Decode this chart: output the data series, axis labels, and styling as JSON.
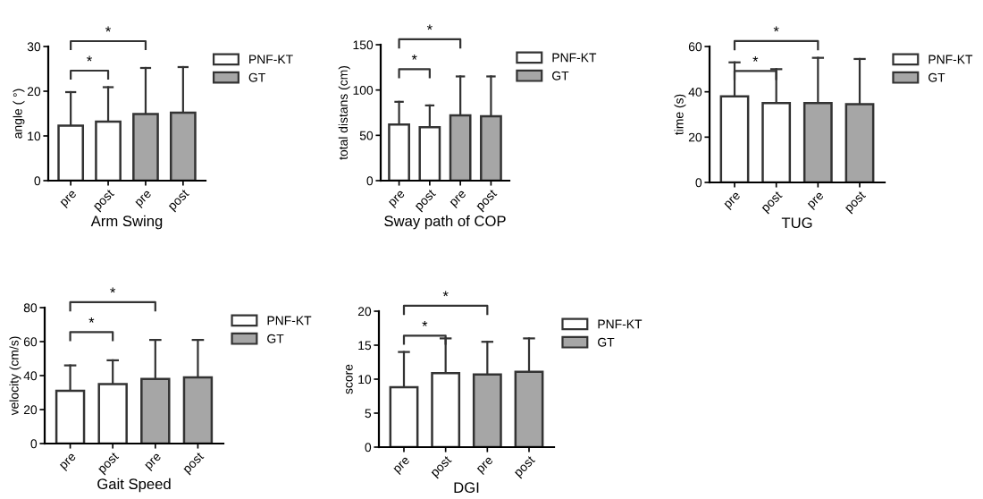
{
  "chart_data": [
    {
      "type": "bar",
      "xlabel": "Arm Swing",
      "ylabel": "angle ( °)",
      "categories": [
        "pre",
        "post",
        "pre",
        "post"
      ],
      "ylim": [
        0,
        30
      ],
      "yticks": [
        0,
        10,
        20,
        30
      ],
      "legend": "right",
      "annotations": [
        "*",
        "*"
      ],
      "series": [
        {
          "name": "PNF-KT",
          "color": "#ffffff",
          "values": [
            12.3,
            13.2,
            null,
            null
          ],
          "errors": [
            [
              12.3,
              19.8
            ],
            [
              13.2,
              20.9
            ],
            null,
            null
          ]
        },
        {
          "name": "GT",
          "color": "#a6a6a6",
          "values": [
            null,
            null,
            14.9,
            15.2
          ],
          "errors": [
            null,
            null,
            [
              14.9,
              25.2
            ],
            [
              15.2,
              25.4
            ]
          ]
        }
      ]
    },
    {
      "type": "bar",
      "xlabel": "Sway path of COP",
      "ylabel": "total distans (cm)",
      "categories": [
        "pre",
        "post",
        "pre",
        "post"
      ],
      "ylim": [
        0,
        150
      ],
      "yticks": [
        0,
        50,
        100,
        150
      ],
      "legend": "right",
      "annotations": [
        "*",
        "*"
      ],
      "series": [
        {
          "name": "PNF-KT",
          "color": "#ffffff",
          "values": [
            62,
            59,
            null,
            null
          ],
          "errors": [
            [
              62,
              87
            ],
            [
              59,
              83
            ],
            null,
            null
          ]
        },
        {
          "name": "GT",
          "color": "#a6a6a6",
          "values": [
            null,
            null,
            72,
            71
          ],
          "errors": [
            null,
            null,
            [
              72,
              115
            ],
            [
              71,
              115
            ]
          ]
        }
      ]
    },
    {
      "type": "bar",
      "xlabel": "TUG",
      "ylabel": "time (s)",
      "categories": [
        "pre",
        "post",
        "pre",
        "post"
      ],
      "ylim": [
        0,
        60
      ],
      "yticks": [
        0,
        20,
        40,
        60
      ],
      "legend": "right",
      "annotations": [
        "*",
        "*"
      ],
      "series": [
        {
          "name": "PNF-KT",
          "color": "#ffffff",
          "values": [
            38,
            35,
            null,
            null
          ],
          "errors": [
            [
              38,
              53
            ],
            [
              35,
              50
            ],
            null,
            null
          ]
        },
        {
          "name": "GT",
          "color": "#a6a6a6",
          "values": [
            null,
            null,
            35,
            34.5
          ],
          "errors": [
            null,
            null,
            [
              35,
              55
            ],
            [
              34.5,
              54.5
            ]
          ]
        }
      ]
    },
    {
      "type": "bar",
      "xlabel": "Gait Speed",
      "ylabel": "velocity (cm/s)",
      "categories": [
        "pre",
        "post",
        "pre",
        "post"
      ],
      "ylim": [
        0,
        80
      ],
      "yticks": [
        0,
        20,
        40,
        60,
        80
      ],
      "legend": "right",
      "annotations": [
        "*",
        "*"
      ],
      "series": [
        {
          "name": "PNF-KT",
          "color": "#ffffff",
          "values": [
            31,
            35,
            null,
            null
          ],
          "errors": [
            [
              31,
              46
            ],
            [
              35,
              49
            ],
            null,
            null
          ]
        },
        {
          "name": "GT",
          "color": "#a6a6a6",
          "values": [
            null,
            null,
            38,
            39
          ],
          "errors": [
            null,
            null,
            [
              38,
              61
            ],
            [
              39,
              61
            ]
          ]
        }
      ]
    },
    {
      "type": "bar",
      "xlabel": "DGI",
      "ylabel": "score",
      "categories": [
        "pre",
        "post",
        "pre",
        "post"
      ],
      "ylim": [
        0,
        20
      ],
      "yticks": [
        0,
        5,
        10,
        15,
        20
      ],
      "legend": "right",
      "annotations": [
        "*",
        "*"
      ],
      "series": [
        {
          "name": "PNF-KT",
          "color": "#ffffff",
          "values": [
            8.8,
            10.9,
            null,
            null
          ],
          "errors": [
            [
              8.8,
              14
            ],
            [
              10.9,
              16
            ],
            null,
            null
          ]
        },
        {
          "name": "GT",
          "color": "#a6a6a6",
          "values": [
            null,
            null,
            10.7,
            11.1
          ],
          "errors": [
            null,
            null,
            [
              10.7,
              15.5
            ],
            [
              11.1,
              16
            ]
          ]
        }
      ]
    }
  ]
}
